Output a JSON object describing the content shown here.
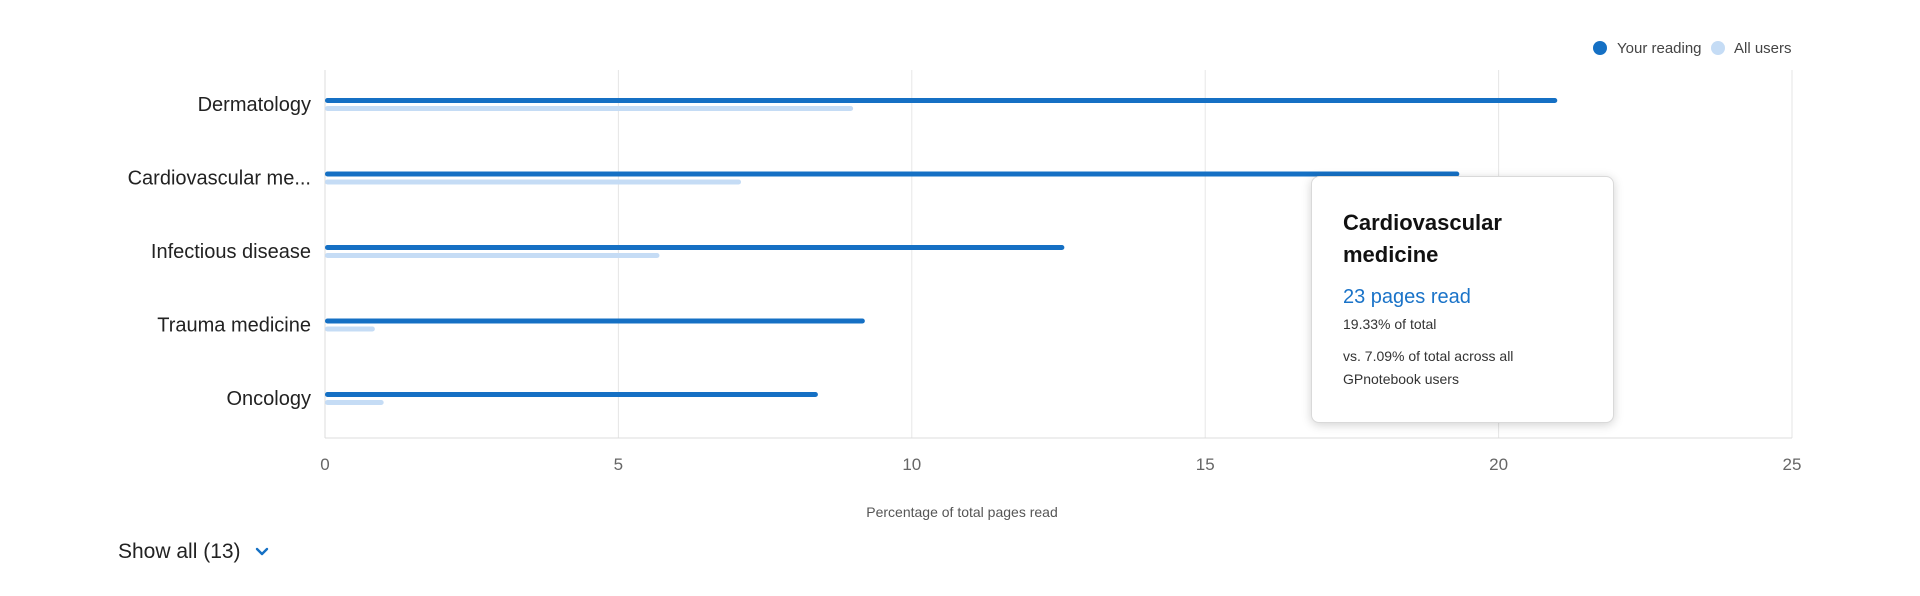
{
  "chart_data": {
    "type": "bar",
    "orientation": "horizontal",
    "categories": [
      "Dermatology",
      "Cardiovascular me...",
      "Infectious disease",
      "Trauma medicine",
      "Oncology"
    ],
    "series": [
      {
        "name": "Your reading",
        "color": "#1570c4",
        "values": [
          21.0,
          19.33,
          12.6,
          9.2,
          8.4
        ]
      },
      {
        "name": "All users",
        "color": "#c5dcf5",
        "values": [
          9.0,
          7.09,
          5.7,
          0.85,
          1.0
        ]
      }
    ],
    "xlabel": "Percentage of total pages read",
    "ylabel": "",
    "xlim": [
      0,
      25
    ],
    "xticks": [
      "0",
      "5",
      "10",
      "15",
      "20",
      "25"
    ],
    "grid": true,
    "legend_position": "top-right"
  },
  "tooltip": {
    "title": "Cardiovascular medicine",
    "pages": "23 pages read",
    "pct": "19.33% of total",
    "vs": "vs. 7.09% of total across all GPnotebook users"
  },
  "show_all": {
    "label": "Show all (13)",
    "icon": "chevron-down-icon"
  }
}
